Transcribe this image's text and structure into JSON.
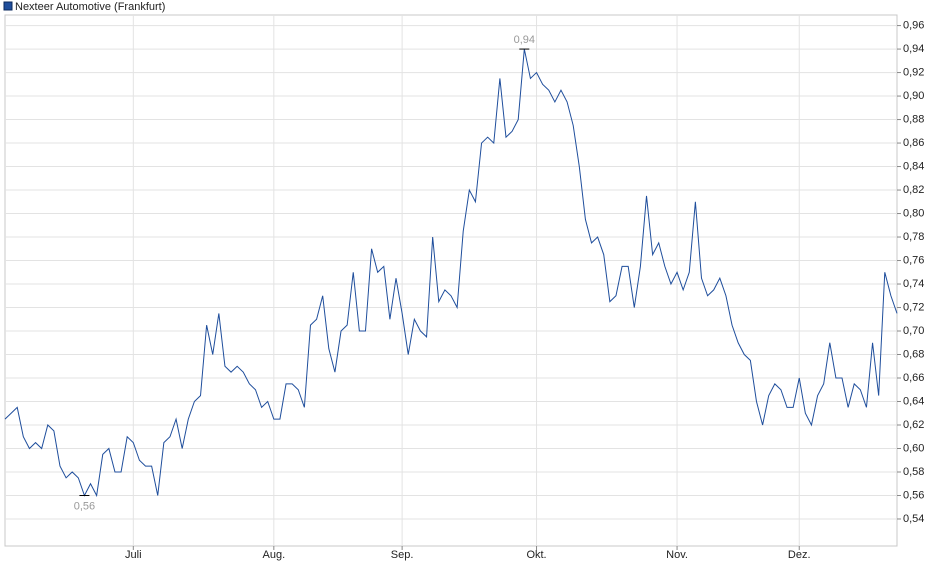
{
  "chart_data": {
    "type": "line",
    "legend": "Nexteer Automotive (Frankfurt)",
    "categories": [
      null,
      null,
      null,
      null,
      null,
      null,
      null,
      null,
      null,
      null,
      null,
      null,
      null,
      null,
      null,
      null,
      null,
      null,
      null,
      null,
      null,
      "Juli",
      null,
      null,
      null,
      null,
      null,
      null,
      null,
      null,
      null,
      null,
      null,
      null,
      null,
      null,
      null,
      null,
      null,
      null,
      null,
      null,
      null,
      null,
      "Aug.",
      null,
      null,
      null,
      null,
      null,
      null,
      null,
      null,
      null,
      null,
      null,
      null,
      null,
      null,
      null,
      null,
      null,
      null,
      null,
      null,
      "Sep.",
      null,
      null,
      null,
      null,
      null,
      null,
      null,
      null,
      null,
      null,
      null,
      null,
      null,
      null,
      null,
      null,
      null,
      null,
      null,
      null,
      null,
      "Okt.",
      null,
      null,
      null,
      null,
      null,
      null,
      null,
      null,
      null,
      null,
      null,
      null,
      null,
      null,
      null,
      null,
      null,
      null,
      null,
      null,
      null,
      null,
      "Nov.",
      null,
      null,
      null,
      null,
      null,
      null,
      null,
      null,
      null,
      null,
      null,
      null,
      null,
      null,
      null,
      null,
      null,
      null,
      null,
      "Dez.",
      null,
      null,
      null,
      null,
      null,
      null,
      null,
      null,
      null,
      null,
      null,
      null,
      null,
      null,
      null,
      null
    ],
    "series": [
      {
        "name": "Nexteer Automotive (Frankfurt)",
        "color": "#1f4e9c",
        "values": [
          0.625,
          0.63,
          0.635,
          0.61,
          0.6,
          0.605,
          0.6,
          0.62,
          0.615,
          0.585,
          0.575,
          0.58,
          0.575,
          0.56,
          0.57,
          0.56,
          0.595,
          0.6,
          0.58,
          0.58,
          0.61,
          0.605,
          0.59,
          0.585,
          0.585,
          0.56,
          0.605,
          0.61,
          0.625,
          0.6,
          0.625,
          0.64,
          0.645,
          0.705,
          0.68,
          0.715,
          0.67,
          0.665,
          0.67,
          0.665,
          0.655,
          0.65,
          0.635,
          0.64,
          0.625,
          0.625,
          0.655,
          0.655,
          0.65,
          0.635,
          0.705,
          0.71,
          0.73,
          0.685,
          0.665,
          0.7,
          0.705,
          0.75,
          0.7,
          0.7,
          0.77,
          0.75,
          0.755,
          0.71,
          0.745,
          0.715,
          0.68,
          0.71,
          0.7,
          0.695,
          0.78,
          0.725,
          0.735,
          0.73,
          0.72,
          0.785,
          0.82,
          0.81,
          0.86,
          0.865,
          0.86,
          0.915,
          0.865,
          0.87,
          0.88,
          0.94,
          0.915,
          0.92,
          0.91,
          0.905,
          0.895,
          0.905,
          0.895,
          0.875,
          0.84,
          0.795,
          0.775,
          0.78,
          0.765,
          0.725,
          0.73,
          0.755,
          0.755,
          0.72,
          0.755,
          0.815,
          0.765,
          0.775,
          0.755,
          0.74,
          0.75,
          0.735,
          0.75,
          0.81,
          0.745,
          0.73,
          0.735,
          0.745,
          0.73,
          0.705,
          0.69,
          0.68,
          0.675,
          0.64,
          0.62,
          0.645,
          0.655,
          0.65,
          0.635,
          0.635,
          0.66,
          0.63,
          0.62,
          0.645,
          0.655,
          0.69,
          0.66,
          0.66,
          0.635,
          0.655,
          0.65,
          0.635,
          0.69,
          0.645,
          0.75,
          0.73,
          0.715
        ]
      }
    ],
    "annotations": [
      {
        "label": "0,94",
        "value": 0.94,
        "position": "above"
      },
      {
        "label": "0,56",
        "value": 0.56,
        "position": "below"
      }
    ],
    "ylim": [
      0.517,
      0.969
    ],
    "yticks": [
      {
        "value": 0.54,
        "label": "0,54"
      },
      {
        "value": 0.56,
        "label": "0,56"
      },
      {
        "value": 0.58,
        "label": "0,58"
      },
      {
        "value": 0.6,
        "label": "0,60"
      },
      {
        "value": 0.62,
        "label": "0,62"
      },
      {
        "value": 0.64,
        "label": "0,64"
      },
      {
        "value": 0.66,
        "label": "0,66"
      },
      {
        "value": 0.68,
        "label": "0,68"
      },
      {
        "value": 0.7,
        "label": "0,70"
      },
      {
        "value": 0.72,
        "label": "0,72"
      },
      {
        "value": 0.74,
        "label": "0,74"
      },
      {
        "value": 0.76,
        "label": "0,76"
      },
      {
        "value": 0.78,
        "label": "0,78"
      },
      {
        "value": 0.8,
        "label": "0,80"
      },
      {
        "value": 0.82,
        "label": "0,82"
      },
      {
        "value": 0.84,
        "label": "0,84"
      },
      {
        "value": 0.86,
        "label": "0,86"
      },
      {
        "value": 0.88,
        "label": "0,88"
      },
      {
        "value": 0.9,
        "label": "0,90"
      },
      {
        "value": 0.92,
        "label": "0,92"
      },
      {
        "value": 0.94,
        "label": "0,94"
      },
      {
        "value": 0.96,
        "label": "0,96"
      }
    ],
    "grid": true
  }
}
